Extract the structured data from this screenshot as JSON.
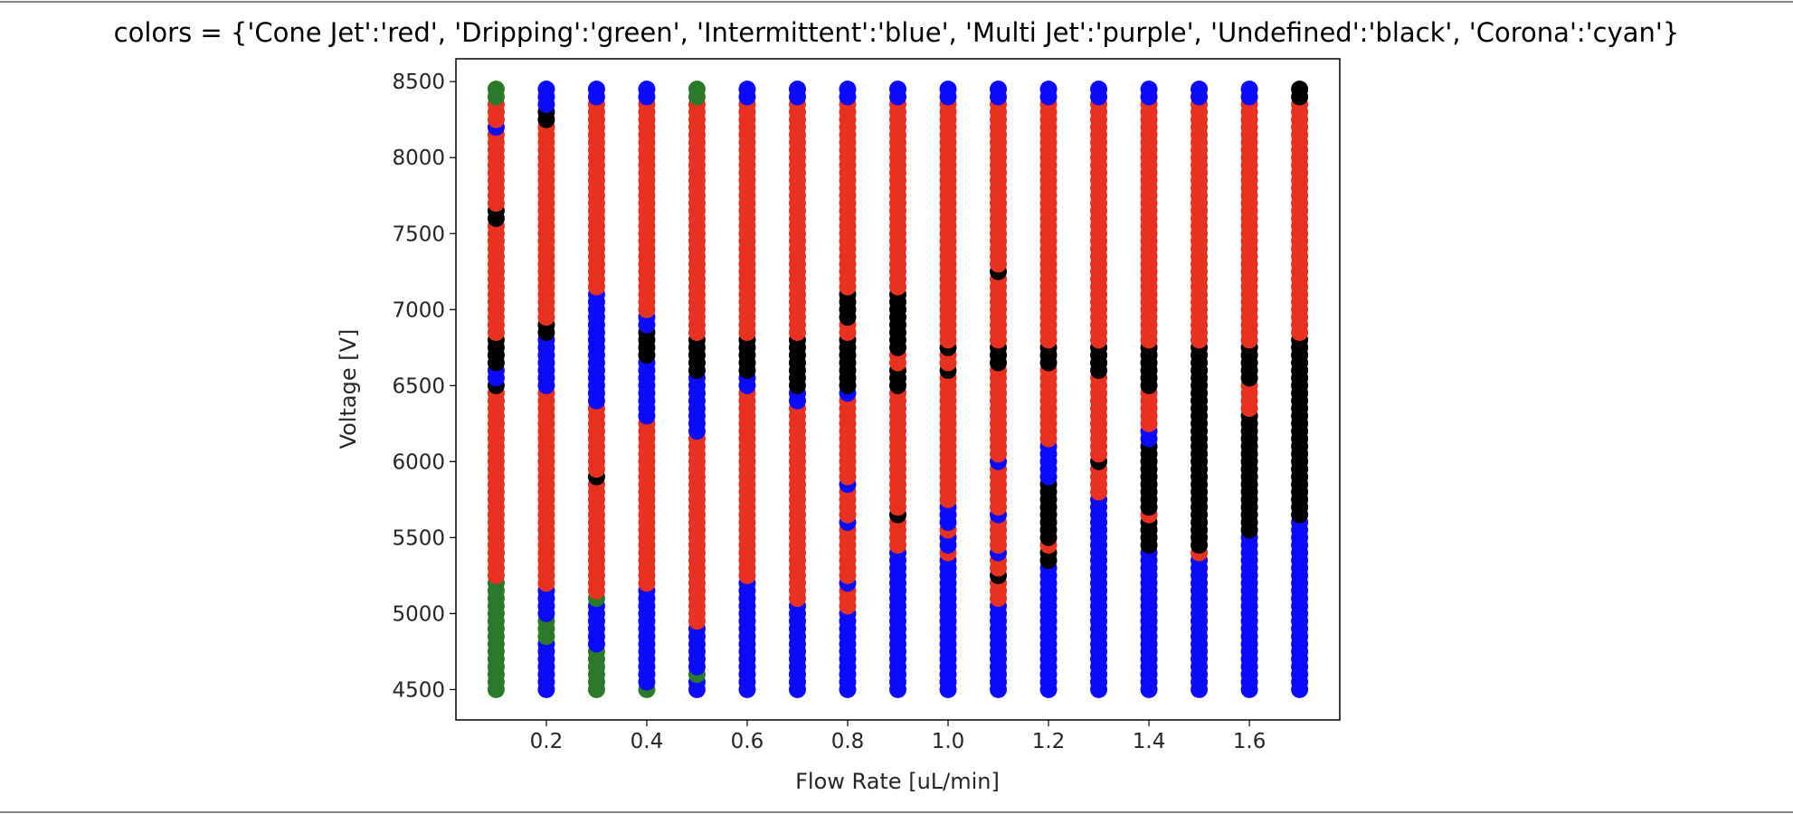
{
  "chart_data": {
    "type": "scatter",
    "title": "colors = {'Cone Jet':'red', 'Dripping':'green', 'Intermittent':'blue', 'Multi Jet':'purple', 'Undefined':'black', 'Corona':'cyan'}",
    "xlabel": "Flow Rate [uL/min]",
    "ylabel": "Voltage [V]",
    "xlim": [
      0.02,
      1.78
    ],
    "ylim": [
      4300,
      8650
    ],
    "xticks": [
      "0.2",
      "0.4",
      "0.6",
      "0.8",
      "1.0",
      "1.2",
      "1.4",
      "1.6"
    ],
    "yticks": [
      "4500",
      "5000",
      "5500",
      "6000",
      "6500",
      "7000",
      "7500",
      "8000",
      "8500"
    ],
    "grid": false,
    "legend": "none",
    "categories": {
      "Cone Jet": "red",
      "Dripping": "green",
      "Intermittent": "blue",
      "Multi Jet": "purple",
      "Undefined": "black",
      "Corona": "cyan"
    },
    "colors": {
      "Cone Jet": "#e8321f",
      "Dripping": "#2a7a2a",
      "Intermittent": "#0a0aff",
      "Undefined": "#000000"
    },
    "voltage_range": [
      4500,
      8450
    ],
    "voltage_step": 50,
    "series": [
      {
        "flow_rate": 0.1,
        "segments": [
          {
            "mode": "Dripping",
            "from": 4500,
            "to": 5250
          },
          {
            "mode": "Cone Jet",
            "from": 5250,
            "to": 6500
          },
          {
            "mode": "Undefined",
            "from": 6500,
            "to": 6550
          },
          {
            "mode": "Intermittent",
            "from": 6550,
            "to": 6650
          },
          {
            "mode": "Undefined",
            "from": 6650,
            "to": 6850
          },
          {
            "mode": "Cone Jet",
            "from": 6850,
            "to": 7600
          },
          {
            "mode": "Undefined",
            "from": 7600,
            "to": 7700
          },
          {
            "mode": "Cone Jet",
            "from": 7700,
            "to": 8200
          },
          {
            "mode": "Intermittent",
            "from": 8200,
            "to": 8250
          },
          {
            "mode": "Cone Jet",
            "from": 8250,
            "to": 8400
          },
          {
            "mode": "Dripping",
            "from": 8400,
            "to": 8450
          }
        ]
      },
      {
        "flow_rate": 0.2,
        "segments": [
          {
            "mode": "Intermittent",
            "from": 4500,
            "to": 4850
          },
          {
            "mode": "Dripping",
            "from": 4850,
            "to": 5000
          },
          {
            "mode": "Intermittent",
            "from": 5000,
            "to": 5200
          },
          {
            "mode": "Cone Jet",
            "from": 5200,
            "to": 6500
          },
          {
            "mode": "Intermittent",
            "from": 6500,
            "to": 6850
          },
          {
            "mode": "Undefined",
            "from": 6850,
            "to": 6950
          },
          {
            "mode": "Cone Jet",
            "from": 6950,
            "to": 8250
          },
          {
            "mode": "Undefined",
            "from": 8250,
            "to": 8350
          },
          {
            "mode": "Intermittent",
            "from": 8350,
            "to": 8450
          }
        ]
      },
      {
        "flow_rate": 0.3,
        "segments": [
          {
            "mode": "Dripping",
            "from": 4500,
            "to": 4800
          },
          {
            "mode": "Intermittent",
            "from": 4800,
            "to": 5100
          },
          {
            "mode": "Dripping",
            "from": 5100,
            "to": 5150
          },
          {
            "mode": "Cone Jet",
            "from": 5150,
            "to": 5900
          },
          {
            "mode": "Undefined",
            "from": 5900,
            "to": 5950
          },
          {
            "mode": "Cone Jet",
            "from": 5950,
            "to": 6400
          },
          {
            "mode": "Intermittent",
            "from": 6400,
            "to": 7150
          },
          {
            "mode": "Cone Jet",
            "from": 7150,
            "to": 8400
          },
          {
            "mode": "Intermittent",
            "from": 8400,
            "to": 8450
          }
        ]
      },
      {
        "flow_rate": 0.4,
        "segments": [
          {
            "mode": "Dripping",
            "from": 4500,
            "to": 4550
          },
          {
            "mode": "Intermittent",
            "from": 4550,
            "to": 5200
          },
          {
            "mode": "Cone Jet",
            "from": 5200,
            "to": 6300
          },
          {
            "mode": "Intermittent",
            "from": 6300,
            "to": 6700
          },
          {
            "mode": "Undefined",
            "from": 6700,
            "to": 6900
          },
          {
            "mode": "Intermittent",
            "from": 6900,
            "to": 7000
          },
          {
            "mode": "Cone Jet",
            "from": 7000,
            "to": 8400
          },
          {
            "mode": "Intermittent",
            "from": 8400,
            "to": 8450
          }
        ]
      },
      {
        "flow_rate": 0.5,
        "segments": [
          {
            "mode": "Intermittent",
            "from": 4500,
            "to": 4600
          },
          {
            "mode": "Dripping",
            "from": 4600,
            "to": 4650
          },
          {
            "mode": "Intermittent",
            "from": 4650,
            "to": 4950
          },
          {
            "mode": "Cone Jet",
            "from": 4950,
            "to": 6200
          },
          {
            "mode": "Intermittent",
            "from": 6200,
            "to": 6600
          },
          {
            "mode": "Undefined",
            "from": 6600,
            "to": 6850
          },
          {
            "mode": "Cone Jet",
            "from": 6850,
            "to": 8400
          },
          {
            "mode": "Dripping",
            "from": 8400,
            "to": 8450
          }
        ]
      },
      {
        "flow_rate": 0.6,
        "segments": [
          {
            "mode": "Intermittent",
            "from": 4500,
            "to": 5250
          },
          {
            "mode": "Cone Jet",
            "from": 5250,
            "to": 6500
          },
          {
            "mode": "Intermittent",
            "from": 6500,
            "to": 6600
          },
          {
            "mode": "Undefined",
            "from": 6600,
            "to": 6850
          },
          {
            "mode": "Cone Jet",
            "from": 6850,
            "to": 8400
          },
          {
            "mode": "Intermittent",
            "from": 8400,
            "to": 8450
          }
        ]
      },
      {
        "flow_rate": 0.7,
        "segments": [
          {
            "mode": "Intermittent",
            "from": 4500,
            "to": 5100
          },
          {
            "mode": "Cone Jet",
            "from": 5100,
            "to": 6400
          },
          {
            "mode": "Intermittent",
            "from": 6400,
            "to": 6500
          },
          {
            "mode": "Undefined",
            "from": 6500,
            "to": 6850
          },
          {
            "mode": "Cone Jet",
            "from": 6850,
            "to": 8400
          },
          {
            "mode": "Intermittent",
            "from": 8400,
            "to": 8450
          }
        ]
      },
      {
        "flow_rate": 0.8,
        "segments": [
          {
            "mode": "Intermittent",
            "from": 4500,
            "to": 5050
          },
          {
            "mode": "Cone Jet",
            "from": 5050,
            "to": 5200
          },
          {
            "mode": "Intermittent",
            "from": 5200,
            "to": 5250
          },
          {
            "mode": "Cone Jet",
            "from": 5250,
            "to": 5600
          },
          {
            "mode": "Intermittent",
            "from": 5600,
            "to": 5650
          },
          {
            "mode": "Cone Jet",
            "from": 5650,
            "to": 5850
          },
          {
            "mode": "Intermittent",
            "from": 5850,
            "to": 5900
          },
          {
            "mode": "Cone Jet",
            "from": 5900,
            "to": 6450
          },
          {
            "mode": "Intermittent",
            "from": 6450,
            "to": 6500
          },
          {
            "mode": "Undefined",
            "from": 6500,
            "to": 6850
          },
          {
            "mode": "Cone Jet",
            "from": 6850,
            "to": 6950
          },
          {
            "mode": "Undefined",
            "from": 6950,
            "to": 7150
          },
          {
            "mode": "Cone Jet",
            "from": 7150,
            "to": 8400
          },
          {
            "mode": "Intermittent",
            "from": 8400,
            "to": 8450
          }
        ]
      },
      {
        "flow_rate": 0.9,
        "segments": [
          {
            "mode": "Intermittent",
            "from": 4500,
            "to": 5450
          },
          {
            "mode": "Cone Jet",
            "from": 5450,
            "to": 5650
          },
          {
            "mode": "Undefined",
            "from": 5650,
            "to": 5700
          },
          {
            "mode": "Cone Jet",
            "from": 5700,
            "to": 6500
          },
          {
            "mode": "Undefined",
            "from": 6500,
            "to": 6650
          },
          {
            "mode": "Cone Jet",
            "from": 6650,
            "to": 6750
          },
          {
            "mode": "Undefined",
            "from": 6750,
            "to": 7150
          },
          {
            "mode": "Cone Jet",
            "from": 7150,
            "to": 8400
          },
          {
            "mode": "Intermittent",
            "from": 8400,
            "to": 8450
          }
        ]
      },
      {
        "flow_rate": 1.0,
        "segments": [
          {
            "mode": "Intermittent",
            "from": 4500,
            "to": 5400
          },
          {
            "mode": "Cone Jet",
            "from": 5400,
            "to": 5450
          },
          {
            "mode": "Intermittent",
            "from": 5450,
            "to": 5550
          },
          {
            "mode": "Cone Jet",
            "from": 5550,
            "to": 5600
          },
          {
            "mode": "Intermittent",
            "from": 5600,
            "to": 5750
          },
          {
            "mode": "Cone Jet",
            "from": 5750,
            "to": 6600
          },
          {
            "mode": "Undefined",
            "from": 6600,
            "to": 6650
          },
          {
            "mode": "Cone Jet",
            "from": 6650,
            "to": 6750
          },
          {
            "mode": "Undefined",
            "from": 6750,
            "to": 6800
          },
          {
            "mode": "Cone Jet",
            "from": 6800,
            "to": 8400
          },
          {
            "mode": "Intermittent",
            "from": 8400,
            "to": 8450
          }
        ]
      },
      {
        "flow_rate": 1.1,
        "segments": [
          {
            "mode": "Intermittent",
            "from": 4500,
            "to": 5100
          },
          {
            "mode": "Cone Jet",
            "from": 5100,
            "to": 5250
          },
          {
            "mode": "Undefined",
            "from": 5250,
            "to": 5300
          },
          {
            "mode": "Cone Jet",
            "from": 5300,
            "to": 5400
          },
          {
            "mode": "Intermittent",
            "from": 5400,
            "to": 5450
          },
          {
            "mode": "Cone Jet",
            "from": 5450,
            "to": 5650
          },
          {
            "mode": "Intermittent",
            "from": 5650,
            "to": 5700
          },
          {
            "mode": "Cone Jet",
            "from": 5700,
            "to": 6000
          },
          {
            "mode": "Intermittent",
            "from": 6000,
            "to": 6050
          },
          {
            "mode": "Cone Jet",
            "from": 6050,
            "to": 6650
          },
          {
            "mode": "Undefined",
            "from": 6650,
            "to": 6800
          },
          {
            "mode": "Cone Jet",
            "from": 6800,
            "to": 7250
          },
          {
            "mode": "Undefined",
            "from": 7250,
            "to": 7300
          },
          {
            "mode": "Cone Jet",
            "from": 7300,
            "to": 8400
          },
          {
            "mode": "Intermittent",
            "from": 8400,
            "to": 8450
          }
        ]
      },
      {
        "flow_rate": 1.2,
        "segments": [
          {
            "mode": "Intermittent",
            "from": 4500,
            "to": 5350
          },
          {
            "mode": "Undefined",
            "from": 5350,
            "to": 5450
          },
          {
            "mode": "Cone Jet",
            "from": 5450,
            "to": 5500
          },
          {
            "mode": "Undefined",
            "from": 5500,
            "to": 5900
          },
          {
            "mode": "Intermittent",
            "from": 5900,
            "to": 6150
          },
          {
            "mode": "Cone Jet",
            "from": 6150,
            "to": 6650
          },
          {
            "mode": "Undefined",
            "from": 6650,
            "to": 6800
          },
          {
            "mode": "Cone Jet",
            "from": 6800,
            "to": 8400
          },
          {
            "mode": "Intermittent",
            "from": 8400,
            "to": 8450
          }
        ]
      },
      {
        "flow_rate": 1.3,
        "segments": [
          {
            "mode": "Intermittent",
            "from": 4500,
            "to": 5800
          },
          {
            "mode": "Cone Jet",
            "from": 5800,
            "to": 6000
          },
          {
            "mode": "Undefined",
            "from": 6000,
            "to": 6050
          },
          {
            "mode": "Cone Jet",
            "from": 6050,
            "to": 6600
          },
          {
            "mode": "Undefined",
            "from": 6600,
            "to": 6800
          },
          {
            "mode": "Cone Jet",
            "from": 6800,
            "to": 8400
          },
          {
            "mode": "Intermittent",
            "from": 8400,
            "to": 8450
          }
        ]
      },
      {
        "flow_rate": 1.4,
        "segments": [
          {
            "mode": "Intermittent",
            "from": 4500,
            "to": 5450
          },
          {
            "mode": "Undefined",
            "from": 5450,
            "to": 5650
          },
          {
            "mode": "Cone Jet",
            "from": 5650,
            "to": 5700
          },
          {
            "mode": "Undefined",
            "from": 5700,
            "to": 6150
          },
          {
            "mode": "Intermittent",
            "from": 6150,
            "to": 6250
          },
          {
            "mode": "Cone Jet",
            "from": 6250,
            "to": 6500
          },
          {
            "mode": "Undefined",
            "from": 6500,
            "to": 6800
          },
          {
            "mode": "Cone Jet",
            "from": 6800,
            "to": 8400
          },
          {
            "mode": "Intermittent",
            "from": 8400,
            "to": 8450
          }
        ]
      },
      {
        "flow_rate": 1.5,
        "segments": [
          {
            "mode": "Intermittent",
            "from": 4500,
            "to": 5400
          },
          {
            "mode": "Cone Jet",
            "from": 5400,
            "to": 5450
          },
          {
            "mode": "Undefined",
            "from": 5450,
            "to": 6800
          },
          {
            "mode": "Cone Jet",
            "from": 6800,
            "to": 8400
          },
          {
            "mode": "Intermittent",
            "from": 8400,
            "to": 8450
          }
        ]
      },
      {
        "flow_rate": 1.6,
        "segments": [
          {
            "mode": "Intermittent",
            "from": 4500,
            "to": 5550
          },
          {
            "mode": "Undefined",
            "from": 5550,
            "to": 6350
          },
          {
            "mode": "Cone Jet",
            "from": 6350,
            "to": 6550
          },
          {
            "mode": "Undefined",
            "from": 6550,
            "to": 6800
          },
          {
            "mode": "Cone Jet",
            "from": 6800,
            "to": 8400
          },
          {
            "mode": "Intermittent",
            "from": 8400,
            "to": 8450
          }
        ]
      },
      {
        "flow_rate": 1.7,
        "segments": [
          {
            "mode": "Intermittent",
            "from": 4500,
            "to": 5650
          },
          {
            "mode": "Undefined",
            "from": 5650,
            "to": 6850
          },
          {
            "mode": "Cone Jet",
            "from": 6850,
            "to": 8400
          },
          {
            "mode": "Undefined",
            "from": 8400,
            "to": 8450
          }
        ]
      }
    ]
  }
}
